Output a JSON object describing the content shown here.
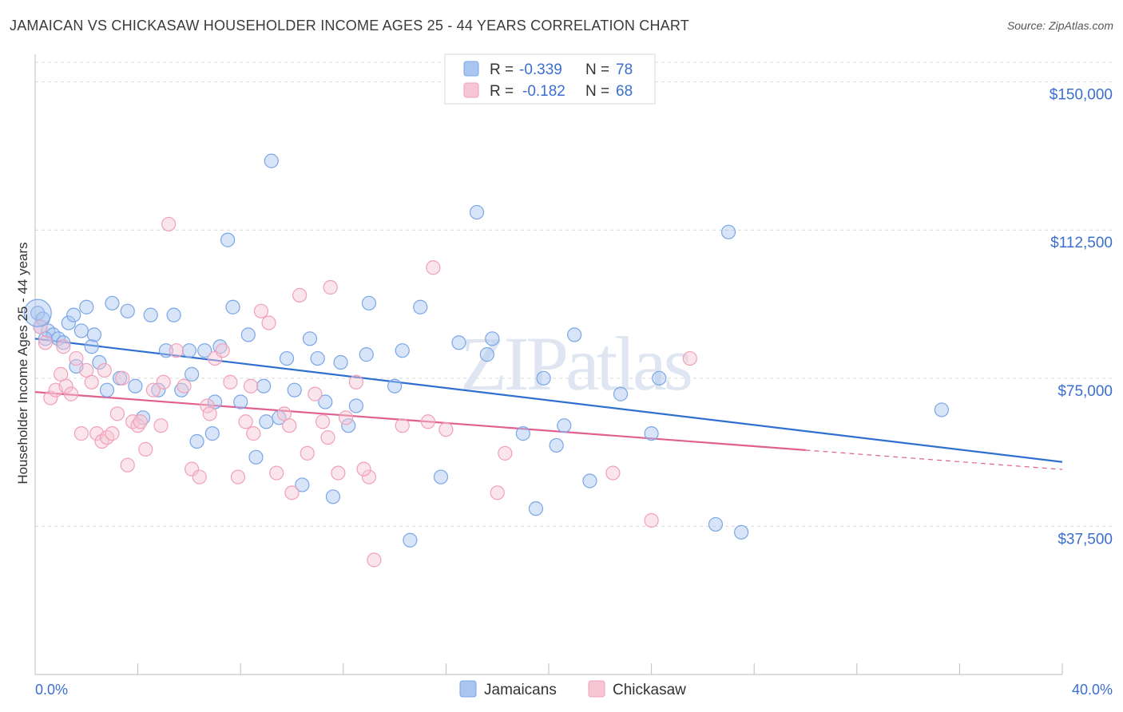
{
  "title": "JAMAICAN VS CHICKASAW HOUSEHOLDER INCOME AGES 25 - 44 YEARS CORRELATION CHART",
  "source": "Source: ZipAtlas.com",
  "watermark": "ZIPatlas",
  "legend": {
    "r_label": "R =",
    "n_label": "N =",
    "rows": [
      {
        "r": "-0.339",
        "n": "78"
      },
      {
        "r": "-0.182",
        "n": "68"
      }
    ]
  },
  "chart_data": {
    "type": "scatter",
    "title": "JAMAICAN VS CHICKASAW HOUSEHOLDER INCOME AGES 25 - 44 YEARS CORRELATION CHART",
    "xlabel": "",
    "ylabel": "Householder Income Ages 25 - 44 years",
    "xlim": [
      0,
      40
    ],
    "ylim": [
      0,
      157000
    ],
    "x_tick_labels": [
      "0.0%",
      "40.0%"
    ],
    "y_ticks": [
      37500,
      75000,
      112500,
      150000
    ],
    "y_tick_labels": [
      "$37,500",
      "$75,000",
      "$112,500",
      "$150,000"
    ],
    "grid": true,
    "legend_position": "top-center",
    "series": [
      {
        "name": "Jamaicans",
        "color": "#7aa6e6",
        "fill": "#a9c6f0",
        "trend_color": "#2f6fcf",
        "trend": {
          "x0": 0.0,
          "y0": 85000,
          "x1": 40.0,
          "y1": 53800
        },
        "points": [
          [
            0.1,
            91500
          ],
          [
            0.3,
            90000
          ],
          [
            0.5,
            87000
          ],
          [
            0.7,
            86000
          ],
          [
            0.9,
            85000
          ],
          [
            1.1,
            84000
          ],
          [
            1.3,
            89000
          ],
          [
            1.5,
            91000
          ],
          [
            1.8,
            87000
          ],
          [
            2.0,
            93000
          ],
          [
            2.3,
            86000
          ],
          [
            2.5,
            79000
          ],
          [
            2.8,
            72000
          ],
          [
            3.0,
            94000
          ],
          [
            3.3,
            75000
          ],
          [
            3.6,
            92000
          ],
          [
            3.9,
            73000
          ],
          [
            4.2,
            65000
          ],
          [
            4.5,
            91000
          ],
          [
            4.8,
            72000
          ],
          [
            5.1,
            82000
          ],
          [
            5.4,
            91000
          ],
          [
            5.7,
            72000
          ],
          [
            6.0,
            82000
          ],
          [
            6.3,
            59000
          ],
          [
            6.6,
            82000
          ],
          [
            6.9,
            61000
          ],
          [
            7.2,
            83000
          ],
          [
            7.5,
            110000
          ],
          [
            7.7,
            93000
          ],
          [
            8.0,
            69000
          ],
          [
            8.3,
            86000
          ],
          [
            8.6,
            55000
          ],
          [
            8.9,
            73000
          ],
          [
            9.2,
            130000
          ],
          [
            9.5,
            65000
          ],
          [
            9.8,
            80000
          ],
          [
            10.1,
            72000
          ],
          [
            10.4,
            48000
          ],
          [
            10.7,
            85000
          ],
          [
            11.0,
            80000
          ],
          [
            11.3,
            69000
          ],
          [
            11.6,
            45000
          ],
          [
            11.9,
            79000
          ],
          [
            12.2,
            63000
          ],
          [
            12.5,
            68000
          ],
          [
            13.0,
            94000
          ],
          [
            14.0,
            73000
          ],
          [
            14.3,
            82000
          ],
          [
            14.6,
            34000
          ],
          [
            15.0,
            93000
          ],
          [
            15.8,
            50000
          ],
          [
            16.5,
            84000
          ],
          [
            17.2,
            117000
          ],
          [
            17.6,
            81000
          ],
          [
            17.8,
            85000
          ],
          [
            19.5,
            42000
          ],
          [
            19.0,
            61000
          ],
          [
            19.8,
            75000
          ],
          [
            20.3,
            58000
          ],
          [
            20.6,
            63000
          ],
          [
            21.0,
            86000
          ],
          [
            21.6,
            49000
          ],
          [
            22.8,
            71000
          ],
          [
            24.0,
            61000
          ],
          [
            24.3,
            75000
          ],
          [
            26.5,
            38000
          ],
          [
            27.0,
            112000
          ],
          [
            27.5,
            36000
          ],
          [
            35.3,
            67000
          ],
          [
            0.2,
            88000
          ],
          [
            0.4,
            85000
          ],
          [
            1.6,
            78000
          ],
          [
            2.2,
            83000
          ],
          [
            6.1,
            76000
          ],
          [
            7.0,
            69000
          ],
          [
            9.0,
            64000
          ],
          [
            12.9,
            81000
          ]
        ]
      },
      {
        "name": "Chickasaw",
        "color": "#f0a0b8",
        "fill": "#f7c6d5",
        "trend_color": "#e06090",
        "trend": {
          "x0": 0.0,
          "y0": 71500,
          "x1": 30.0,
          "y1": 56800
        },
        "trend_dash": {
          "x0": 30.0,
          "y0": 56800,
          "x1": 40.0,
          "y1": 51900
        },
        "points": [
          [
            0.2,
            88000
          ],
          [
            0.4,
            84000
          ],
          [
            0.6,
            70000
          ],
          [
            0.8,
            72000
          ],
          [
            1.0,
            76000
          ],
          [
            1.2,
            73000
          ],
          [
            1.4,
            71000
          ],
          [
            1.6,
            80000
          ],
          [
            1.8,
            61000
          ],
          [
            2.0,
            77000
          ],
          [
            2.2,
            74000
          ],
          [
            2.4,
            61000
          ],
          [
            2.6,
            59000
          ],
          [
            2.8,
            60000
          ],
          [
            3.0,
            61000
          ],
          [
            3.2,
            66000
          ],
          [
            3.4,
            75000
          ],
          [
            3.6,
            53000
          ],
          [
            3.8,
            64000
          ],
          [
            4.0,
            63000
          ],
          [
            4.3,
            57000
          ],
          [
            4.6,
            72000
          ],
          [
            4.9,
            63000
          ],
          [
            5.2,
            114000
          ],
          [
            5.5,
            82000
          ],
          [
            5.8,
            73000
          ],
          [
            6.1,
            52000
          ],
          [
            6.4,
            50000
          ],
          [
            6.7,
            68000
          ],
          [
            7.0,
            80000
          ],
          [
            7.3,
            82000
          ],
          [
            7.6,
            74000
          ],
          [
            7.9,
            50000
          ],
          [
            8.2,
            64000
          ],
          [
            8.5,
            61000
          ],
          [
            8.8,
            92000
          ],
          [
            9.1,
            89000
          ],
          [
            9.4,
            51000
          ],
          [
            9.7,
            66000
          ],
          [
            10.0,
            46000
          ],
          [
            10.3,
            96000
          ],
          [
            10.6,
            56000
          ],
          [
            10.9,
            71000
          ],
          [
            11.2,
            64000
          ],
          [
            11.5,
            98000
          ],
          [
            11.8,
            51000
          ],
          [
            12.1,
            65000
          ],
          [
            12.5,
            74000
          ],
          [
            13.0,
            50000
          ],
          [
            13.2,
            29000
          ],
          [
            14.3,
            63000
          ],
          [
            15.3,
            64000
          ],
          [
            16.0,
            62000
          ],
          [
            15.5,
            103000
          ],
          [
            18.0,
            46000
          ],
          [
            18.3,
            56000
          ],
          [
            22.5,
            51000
          ],
          [
            24.0,
            39000
          ],
          [
            25.5,
            80000
          ],
          [
            1.1,
            83000
          ],
          [
            2.7,
            77000
          ],
          [
            4.1,
            64000
          ],
          [
            5.0,
            74000
          ],
          [
            6.8,
            66000
          ],
          [
            8.4,
            73000
          ],
          [
            9.9,
            63000
          ],
          [
            11.4,
            60000
          ],
          [
            12.8,
            52000
          ]
        ]
      }
    ]
  }
}
